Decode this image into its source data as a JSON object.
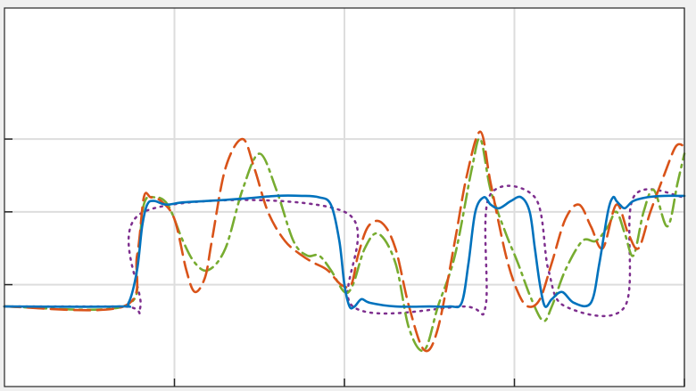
{
  "chart_data": {
    "type": "line",
    "title": "",
    "xlabel": "",
    "ylabel": "",
    "grid": true,
    "legend": "none",
    "xlim": [
      0,
      4
    ],
    "ylim": [
      -1.4,
      3.8
    ],
    "x_ticks": [
      1,
      2,
      3,
      4
    ],
    "y_ticks": [
      0,
      1,
      2
    ],
    "background": "#ffffff",
    "grid_color": "#dddddd",
    "series": [
      {
        "style": "dotted",
        "color": "#7e2f8e",
        "x": [
          0,
          0.7,
          0.8,
          0.82,
          2.0,
          2.05,
          2.7,
          2.83,
          2.85,
          3.12,
          3.2,
          3.3,
          3.65,
          3.7,
          4.0
        ],
        "y": [
          -0.3,
          -0.3,
          -0.3,
          1.0,
          1.0,
          -0.3,
          -0.3,
          -0.3,
          1.2,
          1.2,
          0.2,
          -0.3,
          -0.3,
          1.2,
          1.2
        ]
      },
      {
        "style": "dash-dot",
        "color": "#77ac30",
        "x": [
          0,
          0.7,
          0.78,
          0.82,
          0.88,
          0.96,
          1.05,
          1.12,
          1.2,
          1.3,
          1.4,
          1.5,
          1.6,
          1.7,
          1.78,
          1.85,
          1.92,
          2.0,
          2.05,
          2.12,
          2.2,
          2.3,
          2.38,
          2.47,
          2.55,
          2.65,
          2.75,
          2.8,
          2.86,
          2.95,
          3.02,
          3.1,
          3.17,
          3.22,
          3.3,
          3.4,
          3.48,
          3.55,
          3.6,
          3.65,
          3.7,
          3.76,
          3.82,
          3.9,
          3.96,
          4.0
        ],
        "y": [
          -0.3,
          -0.3,
          0.3,
          1.1,
          1.2,
          1.1,
          0.6,
          0.3,
          0.2,
          0.5,
          1.3,
          1.8,
          1.3,
          0.6,
          0.4,
          0.4,
          0.2,
          -0.1,
          0.0,
          0.5,
          0.7,
          0.3,
          -0.6,
          -0.9,
          -0.3,
          0.4,
          1.6,
          2.0,
          1.3,
          0.7,
          0.3,
          -0.2,
          -0.5,
          -0.3,
          0.2,
          0.6,
          0.6,
          0.8,
          1.0,
          0.7,
          0.4,
          1.0,
          1.3,
          0.8,
          1.4,
          1.8
        ]
      },
      {
        "style": "dashed",
        "color": "#d95319",
        "x": [
          0,
          0.7,
          0.78,
          0.82,
          0.86,
          0.92,
          1.0,
          1.07,
          1.12,
          1.18,
          1.22,
          1.3,
          1.4,
          1.47,
          1.55,
          1.65,
          1.75,
          1.82,
          1.9,
          1.98,
          2.04,
          2.08,
          2.14,
          2.22,
          2.3,
          2.38,
          2.47,
          2.55,
          2.65,
          2.72,
          2.8,
          2.86,
          2.95,
          3.02,
          3.08,
          3.15,
          3.22,
          3.3,
          3.38,
          3.45,
          3.52,
          3.6,
          3.67,
          3.73,
          3.8,
          3.88,
          3.95,
          4.0
        ],
        "y": [
          -0.3,
          -0.3,
          0.4,
          1.2,
          1.2,
          1.15,
          0.9,
          0.2,
          -0.1,
          0.1,
          0.6,
          1.6,
          2.0,
          1.6,
          1.0,
          0.6,
          0.4,
          0.3,
          0.2,
          0.0,
          0.0,
          0.4,
          0.8,
          0.85,
          0.5,
          -0.3,
          -0.9,
          -0.6,
          0.6,
          1.5,
          2.1,
          1.4,
          0.4,
          -0.1,
          -0.3,
          -0.2,
          0.3,
          0.9,
          1.1,
          0.8,
          0.5,
          1.1,
          0.7,
          0.5,
          1.0,
          1.5,
          1.9,
          1.9
        ]
      },
      {
        "style": "solid",
        "color": "#0072bd",
        "x": [
          0,
          0.67,
          0.73,
          0.78,
          0.81,
          0.84,
          0.88,
          0.95,
          1.05,
          1.2,
          1.4,
          1.6,
          1.75,
          1.85,
          1.92,
          1.97,
          2.0,
          2.03,
          2.06,
          2.1,
          2.15,
          2.3,
          2.5,
          2.62,
          2.69,
          2.73,
          2.77,
          2.82,
          2.86,
          2.91,
          2.98,
          3.04,
          3.09,
          3.12,
          3.15,
          3.18,
          3.22,
          3.28,
          3.35,
          3.45,
          3.5,
          3.55,
          3.58,
          3.6,
          3.62,
          3.65,
          3.7,
          3.78,
          3.88,
          3.96,
          4.0
        ],
        "y": [
          -0.3,
          -0.3,
          -0.25,
          0.2,
          0.8,
          1.1,
          1.15,
          1.1,
          1.13,
          1.15,
          1.18,
          1.22,
          1.22,
          1.2,
          1.1,
          0.6,
          0.0,
          -0.3,
          -0.3,
          -0.2,
          -0.25,
          -0.3,
          -0.3,
          -0.3,
          -0.25,
          0.3,
          1.0,
          1.2,
          1.1,
          1.05,
          1.15,
          1.2,
          1.0,
          0.5,
          0.0,
          -0.3,
          -0.2,
          -0.1,
          -0.25,
          -0.25,
          0.3,
          1.0,
          1.2,
          1.15,
          1.1,
          1.05,
          1.15,
          1.2,
          1.22,
          1.22,
          1.22
        ]
      }
    ]
  }
}
